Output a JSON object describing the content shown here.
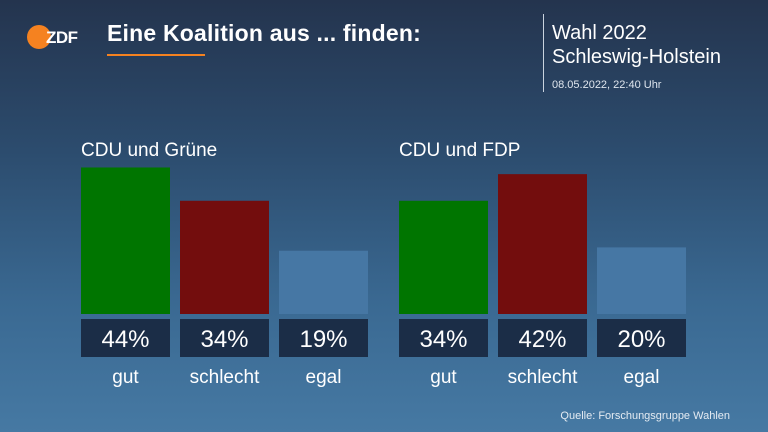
{
  "header": {
    "title": "Eine Koalition aus ... finden:",
    "election_title": "Wahl 2022",
    "election_region": "Schleswig-Holstein",
    "timestamp": "08.05.2022, 22:40 Uhr"
  },
  "brand": {
    "logo": "ZDF",
    "accent_color": "#f58220"
  },
  "source": "Quelle: Forschungsgruppe Wahlen",
  "colors": {
    "gut": "#007500",
    "schlecht": "#730d0d",
    "egal": "#4677a4",
    "label_box": "#1b2d47"
  },
  "chart_data": [
    {
      "type": "bar",
      "title": "CDU und Grüne",
      "categories": [
        "gut",
        "schlecht",
        "egal"
      ],
      "values": [
        44,
        34,
        19
      ],
      "value_labels": [
        "44%",
        "34%",
        "19%"
      ],
      "ylim": [
        0,
        45
      ]
    },
    {
      "type": "bar",
      "title": "CDU und FDP",
      "categories": [
        "gut",
        "schlecht",
        "egal"
      ],
      "values": [
        34,
        42,
        20
      ],
      "value_labels": [
        "34%",
        "42%",
        "20%"
      ],
      "ylim": [
        0,
        45
      ]
    }
  ]
}
